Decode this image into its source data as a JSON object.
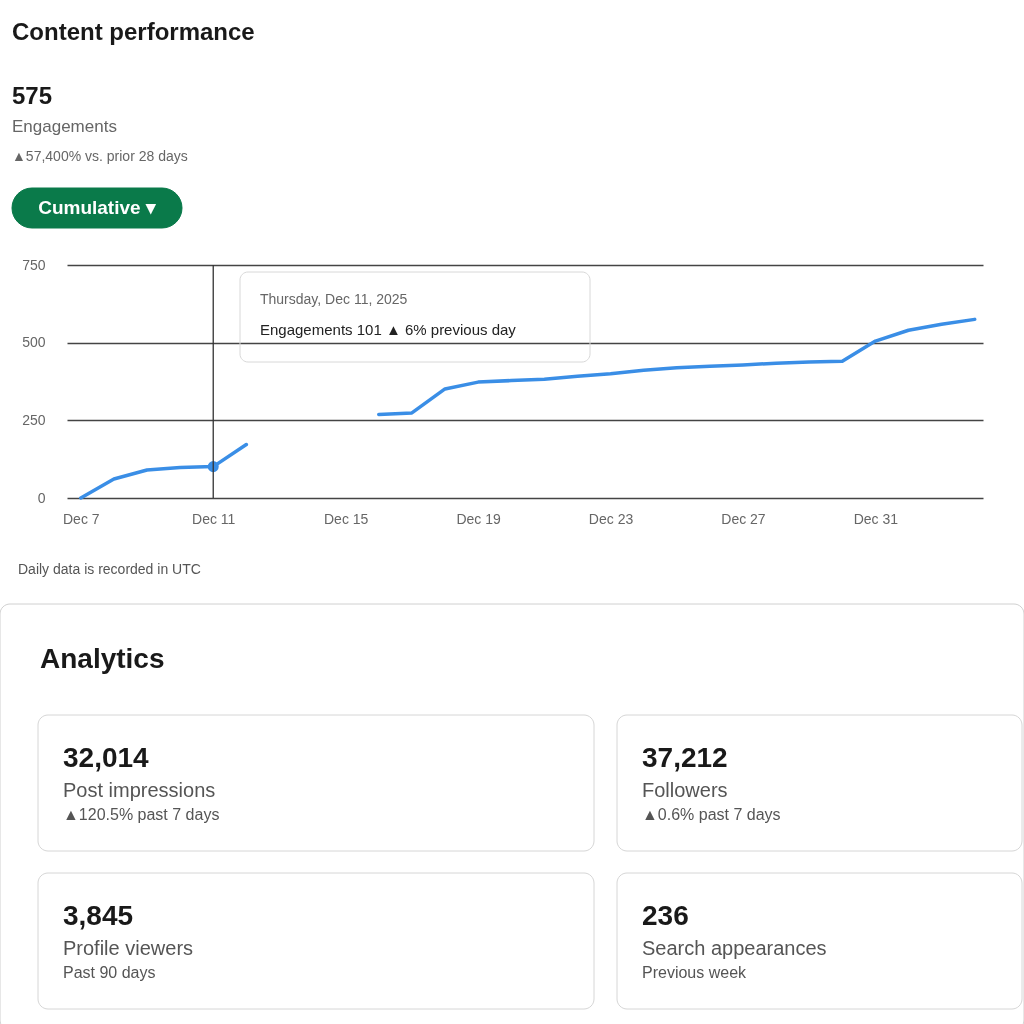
{
  "chart_data": [
    {
      "type": "line",
      "title": "Content performance",
      "annotations": [
        "575",
        "Engagements",
        "▲57,400% vs. prior 28 days",
        "Cumulative ▾",
        "Thursday, Dec 11, 2025",
        "Engagements   101  ▲ 6% previous day",
        "Daily data is recorded in UTC"
      ],
      "x": [
        "2025-12-07",
        "2025-12-08",
        "2025-12-09",
        "2025-12-10",
        "2025-12-11",
        "2025-12-12",
        "2025-12-13",
        "2025-12-14",
        "2025-12-15",
        "2025-12-16",
        "2025-12-17",
        "2025-12-18",
        "2025-12-19",
        "2025-12-20",
        "2025-12-21",
        "2025-12-22",
        "2025-12-23",
        "2025-12-24",
        "2025-12-25",
        "2025-12-26",
        "2025-12-27",
        "2025-12-28",
        "2025-12-29",
        "2025-12-30",
        "2025-12-31",
        "2026-01-01",
        "2026-01-02",
        "2026-01-03"
      ],
      "series": [
        {
          "type": "scatter",
          "x": [
            "2025-12-11"
          ],
          "color": "#3a8ee6",
          "values": [
            101
          ]
        },
        {
          "color": "#3a8ee6",
          "values": [
            0,
            61,
            90,
            98,
            101,
            172,
            null,
            null,
            null,
            269,
            274,
            351,
            373,
            378,
            382,
            392,
            400,
            411,
            419,
            424,
            428,
            434,
            438,
            440,
            505,
            540,
            559,
            575
          ]
        }
      ],
      "xlim": [
        "2025-12-06T14:00",
        "2026-01-03T06:00"
      ],
      "xticks": [
        {
          "value": "2025-12-07",
          "label": "Dec 7"
        },
        {
          "value": "2025-12-11",
          "label": "Dec 11"
        },
        {
          "value": "2025-12-15",
          "label": "Dec 15"
        },
        {
          "value": "2025-12-19",
          "label": "Dec 19"
        },
        {
          "value": "2025-12-23",
          "label": "Dec 23"
        },
        {
          "value": "2025-12-27",
          "label": "Dec 27"
        },
        {
          "value": "2025-12-31",
          "label": "Dec 31"
        }
      ],
      "ylim": [
        0,
        750
      ],
      "yticks": [
        0,
        250,
        500,
        750
      ],
      "grid": "y",
      "ref_lines": [
        {
          "axis": "x",
          "value": "2025-12-11",
          "color": "#333333"
        }
      ]
    },
    {
      "type": "other",
      "title": "Analytics",
      "annotations": [
        "32,014",
        "Post impressions",
        "▲120.5% past 7 days",
        "37,212",
        "Followers",
        "▲0.6% past 7 days",
        "3,845",
        "Profile viewers",
        "Past 90 days",
        "236",
        "Search appearances",
        "Previous week"
      ]
    }
  ]
}
